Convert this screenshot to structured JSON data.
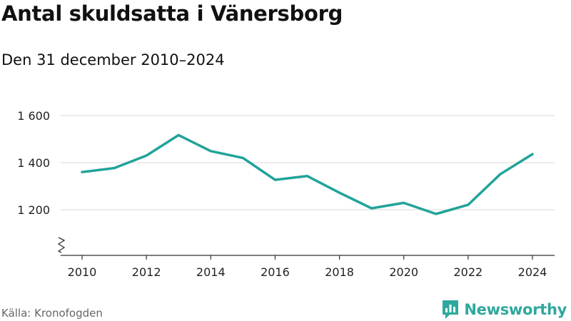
{
  "title": "Antal skuldsatta i Vänersborg",
  "subtitle": "Den 31 december 2010–2024",
  "source": "Källa: Kronofogden",
  "brand": {
    "name": "Newsworthy",
    "icon": "newsworthy-logo-icon",
    "color": "#2fa89d"
  },
  "chart_data": {
    "type": "line",
    "title": "Antal skuldsatta i Vänersborg",
    "subtitle": "Den 31 december 2010–2024",
    "xlabel": "",
    "ylabel": "",
    "x": [
      2010,
      2011,
      2012,
      2013,
      2014,
      2015,
      2016,
      2017,
      2018,
      2019,
      2020,
      2021,
      2022,
      2023,
      2024
    ],
    "series": [
      {
        "name": "Antal skuldsatta",
        "color": "#21a39a",
        "values": [
          1360,
          1377,
          1430,
          1517,
          1449,
          1420,
          1327,
          1343,
          1272,
          1206,
          1229,
          1182,
          1221,
          1351,
          1436
        ]
      }
    ],
    "ylim": [
      1060,
      1640
    ],
    "y_ticks": [
      1200,
      1400,
      1600
    ],
    "y_tick_labels": [
      "1 200",
      "1 400",
      "1 600"
    ],
    "x_ticks": [
      2010,
      2012,
      2014,
      2016,
      2018,
      2020,
      2022,
      2024
    ],
    "x_tick_labels": [
      "2010",
      "2012",
      "2014",
      "2016",
      "2018",
      "2020",
      "2022",
      "2024"
    ],
    "axis_break": true,
    "grid": true
  }
}
